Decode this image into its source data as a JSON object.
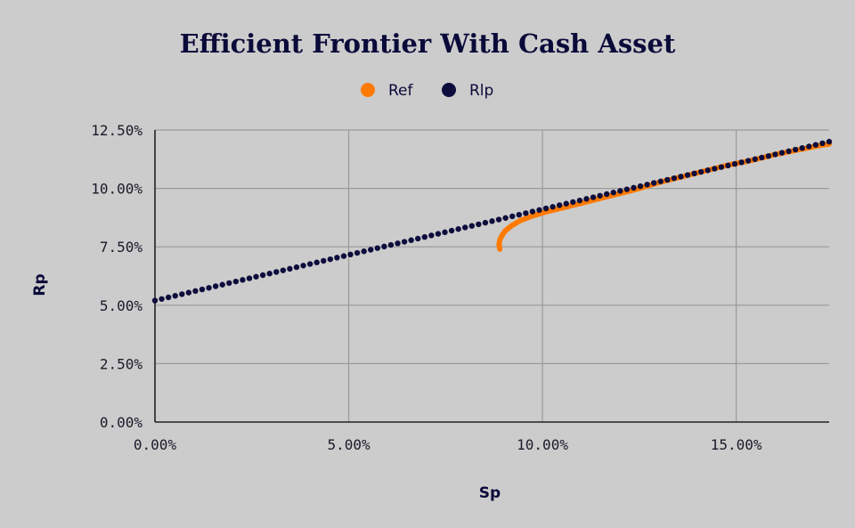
{
  "chart_data": {
    "type": "scatter",
    "title": "Efficient Frontier With Cash Asset",
    "xlabel": "Sp",
    "ylabel": "Rp",
    "xlim": [
      0,
      17.4
    ],
    "ylim": [
      0,
      12.5
    ],
    "x_ticks": [
      "0.00%",
      "5.00%",
      "10.00%",
      "15.00%"
    ],
    "x_tick_values": [
      0,
      5,
      10,
      15
    ],
    "y_ticks": [
      "0.00%",
      "2.50%",
      "5.00%",
      "7.50%",
      "10.00%",
      "12.50%"
    ],
    "y_tick_values": [
      0,
      2.5,
      5,
      7.5,
      10,
      12.5
    ],
    "grid": true,
    "legend_position": "top-center",
    "series": [
      {
        "name": "Ref",
        "color": "#ff7a00",
        "points": [
          [
            8.9,
            7.4
          ],
          [
            8.88,
            7.6
          ],
          [
            8.9,
            7.8
          ],
          [
            8.96,
            8.0
          ],
          [
            9.05,
            8.2
          ],
          [
            9.2,
            8.4
          ],
          [
            9.4,
            8.6
          ],
          [
            9.7,
            8.8
          ],
          [
            10.1,
            9.0
          ],
          [
            10.6,
            9.2
          ],
          [
            11.2,
            9.45
          ],
          [
            11.8,
            9.7
          ],
          [
            12.4,
            9.95
          ],
          [
            13.0,
            10.25
          ],
          [
            13.6,
            10.5
          ],
          [
            14.2,
            10.75
          ],
          [
            14.8,
            11.0
          ],
          [
            15.4,
            11.2
          ],
          [
            16.0,
            11.45
          ],
          [
            16.6,
            11.65
          ],
          [
            17.2,
            11.85
          ],
          [
            17.4,
            11.9
          ]
        ]
      },
      {
        "name": "Rlp",
        "color": "#0d0d3d",
        "x_start": 0,
        "x_end": 17.4,
        "y_start": 5.2,
        "y_end": 12.0,
        "count": 100
      }
    ]
  }
}
